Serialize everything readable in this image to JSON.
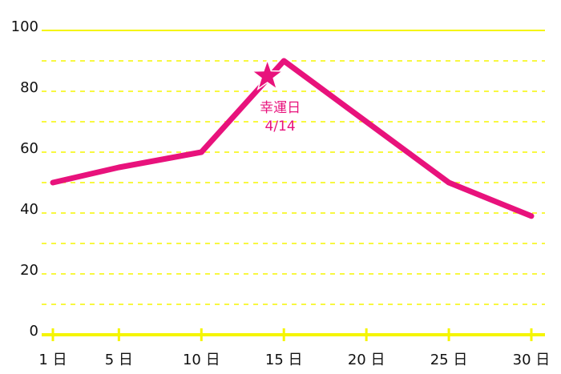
{
  "chart_data": {
    "type": "line",
    "x": [
      1,
      5,
      10,
      15,
      20,
      25,
      30
    ],
    "series": [
      {
        "color": "#e8127c",
        "values": [
          50,
          55,
          60,
          90,
          70,
          50,
          39
        ]
      }
    ],
    "xlim": [
      1,
      30
    ],
    "xticks": [
      {
        "value": 1,
        "label": "1 日"
      },
      {
        "value": 5,
        "label": "5 日"
      },
      {
        "value": 10,
        "label": "10 日"
      },
      {
        "value": 15,
        "label": "15 日"
      },
      {
        "value": 20,
        "label": "20 日"
      },
      {
        "value": 25,
        "label": "25 日"
      },
      {
        "value": 30,
        "label": "30 日"
      }
    ],
    "ylim": [
      0,
      100
    ],
    "yticks": [
      0,
      20,
      40,
      60,
      80,
      100
    ],
    "minor_yticks": [
      10,
      30,
      50,
      70,
      90
    ],
    "grid": true,
    "grid_color": "#f5f500",
    "annotation": {
      "x": 14,
      "y": 85,
      "text": "幸運日",
      "date": "4/14"
    }
  }
}
